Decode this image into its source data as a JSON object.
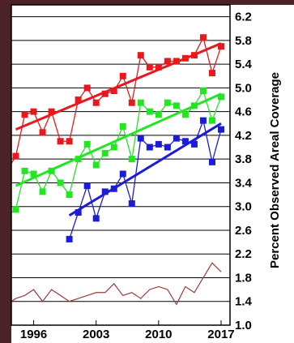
{
  "chart_data": {
    "type": "line",
    "title": "",
    "xlabel": "",
    "ylabel": "Percent Observed Areal Coverage",
    "xlim": [
      1993.5,
      2018
    ],
    "ylim": [
      1.0,
      6.4
    ],
    "y_ticks": [
      "1.0",
      "1.4",
      "1.8",
      "2.2",
      "2.6",
      "3.0",
      "3.4",
      "3.8",
      "4.2",
      "4.6",
      "5.0",
      "5.4",
      "5.8",
      "6.2"
    ],
    "x_ticks": [
      "1996",
      "2003",
      "2010",
      "2017"
    ],
    "grid": true,
    "legend": "none",
    "series": [
      {
        "color": "#e8181c",
        "marker": "square",
        "x": [
          1993,
          1994,
          1995,
          1996,
          1997,
          1998,
          1999,
          2000,
          2001,
          2002,
          2003,
          2004,
          2005,
          2006,
          2007,
          2008,
          2009,
          2010,
          2011,
          2012,
          2013,
          2014,
          2015,
          2016,
          2017
        ],
        "y": [
          3.6,
          3.85,
          4.55,
          4.6,
          4.25,
          4.6,
          4.1,
          4.1,
          4.8,
          5.0,
          4.75,
          4.9,
          4.95,
          5.2,
          4.75,
          5.55,
          5.35,
          5.35,
          5.45,
          5.45,
          5.5,
          5.55,
          5.85,
          5.25,
          5.7
        ],
        "trend": [
          4.3,
          5.75
        ]
      },
      {
        "color": "#22e622",
        "marker": "square",
        "x": [
          1993,
          1994,
          1995,
          1996,
          1997,
          1998,
          1999,
          2000,
          2001,
          2002,
          2003,
          2004,
          2005,
          2006,
          2007,
          2008,
          2009,
          2010,
          2011,
          2012,
          2013,
          2014,
          2015,
          2016,
          2017
        ],
        "y": [
          2.85,
          2.95,
          3.6,
          3.55,
          3.25,
          3.6,
          3.4,
          3.2,
          3.8,
          4.05,
          3.7,
          3.9,
          4.0,
          4.35,
          3.8,
          4.75,
          4.6,
          4.55,
          4.75,
          4.7,
          4.55,
          4.7,
          4.95,
          4.45,
          4.85
        ],
        "trend": [
          3.35,
          4.9
        ]
      },
      {
        "color": "#1c1cd8",
        "marker": "square",
        "x": [
          2000,
          2001,
          2002,
          2003,
          2004,
          2005,
          2006,
          2007,
          2008,
          2009,
          2010,
          2011,
          2012,
          2013,
          2014,
          2015,
          2016,
          2017
        ],
        "y": [
          2.45,
          2.9,
          3.35,
          2.8,
          3.25,
          3.3,
          3.55,
          3.05,
          4.15,
          4.0,
          4.05,
          4.0,
          4.15,
          4.1,
          4.05,
          4.45,
          3.75,
          4.3
        ],
        "trend": [
          2.85,
          4.4
        ]
      },
      {
        "color": "#9a3a3a",
        "marker": "none",
        "x": [
          1993,
          1994,
          1995,
          1996,
          1997,
          1998,
          1999,
          2000,
          2001,
          2002,
          2003,
          2004,
          2005,
          2006,
          2007,
          2008,
          2009,
          2010,
          2011,
          2012,
          2013,
          2014,
          2015,
          2016,
          2017
        ],
        "y": [
          1.35,
          1.45,
          1.5,
          1.6,
          1.4,
          1.6,
          1.5,
          1.4,
          1.45,
          1.5,
          1.55,
          1.55,
          1.7,
          1.5,
          1.55,
          1.45,
          1.6,
          1.65,
          1.6,
          1.35,
          1.65,
          1.55,
          1.8,
          2.05,
          1.9
        ]
      }
    ]
  }
}
